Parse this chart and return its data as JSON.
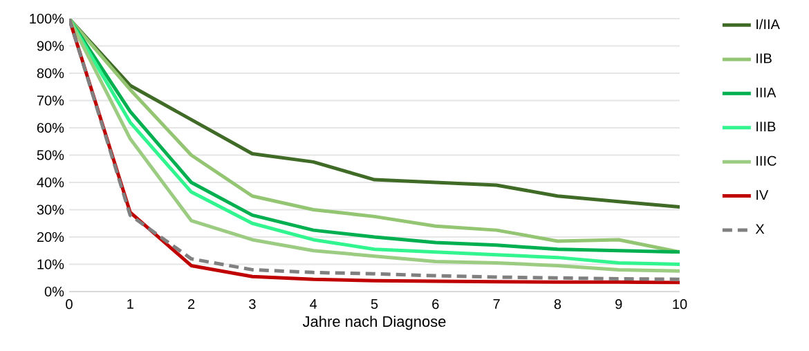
{
  "chart_data": {
    "type": "line",
    "xlabel": "Jahre nach Diagnose",
    "x": [
      0,
      1,
      2,
      3,
      4,
      5,
      6,
      7,
      8,
      9,
      10
    ],
    "series": [
      {
        "name": "I/IIA",
        "color": "#3f6b27",
        "values": [
          100,
          75.5,
          63,
          50.5,
          47.5,
          41,
          40,
          39,
          35,
          33,
          31
        ]
      },
      {
        "name": "IIB",
        "color": "#93c572",
        "values": [
          100,
          74,
          50,
          35,
          30,
          27.5,
          24,
          22.5,
          18.5,
          19,
          14.5
        ]
      },
      {
        "name": "IIIA",
        "color": "#00b050",
        "values": [
          100,
          66,
          40,
          28,
          22.5,
          20,
          18,
          17,
          15.5,
          15,
          14.5
        ]
      },
      {
        "name": "IIIB",
        "color": "#33f58f",
        "values": [
          100,
          62,
          36.5,
          25,
          19,
          15.5,
          14.5,
          13.5,
          12.5,
          10.5,
          10
        ]
      },
      {
        "name": "IIIC",
        "color": "#9ccc82",
        "values": [
          100,
          56,
          26,
          19,
          15,
          13,
          11,
          10.5,
          9.5,
          8,
          7.5
        ]
      },
      {
        "name": "IV",
        "color": "#c00000",
        "values": [
          100,
          29,
          9.5,
          5.5,
          4.5,
          4,
          3.8,
          3.6,
          3.5,
          3.5,
          3.3
        ]
      },
      {
        "name": "X",
        "color": "#808080",
        "line_style": "dashed",
        "values": [
          100,
          28,
          12,
          8,
          7,
          6.5,
          5.8,
          5.3,
          5,
          4.7,
          4.5
        ]
      }
    ],
    "xlim": [
      0,
      10
    ],
    "xticks": [
      0,
      1,
      2,
      3,
      4,
      5,
      6,
      7,
      8,
      9,
      10
    ],
    "ylim": [
      0,
      100
    ],
    "yticks": [
      {
        "value": 0,
        "label": "0%"
      },
      {
        "value": 10,
        "label": "10%"
      },
      {
        "value": 20,
        "label": "20%"
      },
      {
        "value": 30,
        "label": "30%"
      },
      {
        "value": 40,
        "label": "40%"
      },
      {
        "value": 50,
        "label": "50%"
      },
      {
        "value": 60,
        "label": "60%"
      },
      {
        "value": 70,
        "label": "70%"
      },
      {
        "value": 80,
        "label": "80%"
      },
      {
        "value": 90,
        "label": "90%"
      },
      {
        "value": 100,
        "label": "100%"
      }
    ],
    "grid": "y",
    "legend": "right",
    "marker": "none"
  }
}
